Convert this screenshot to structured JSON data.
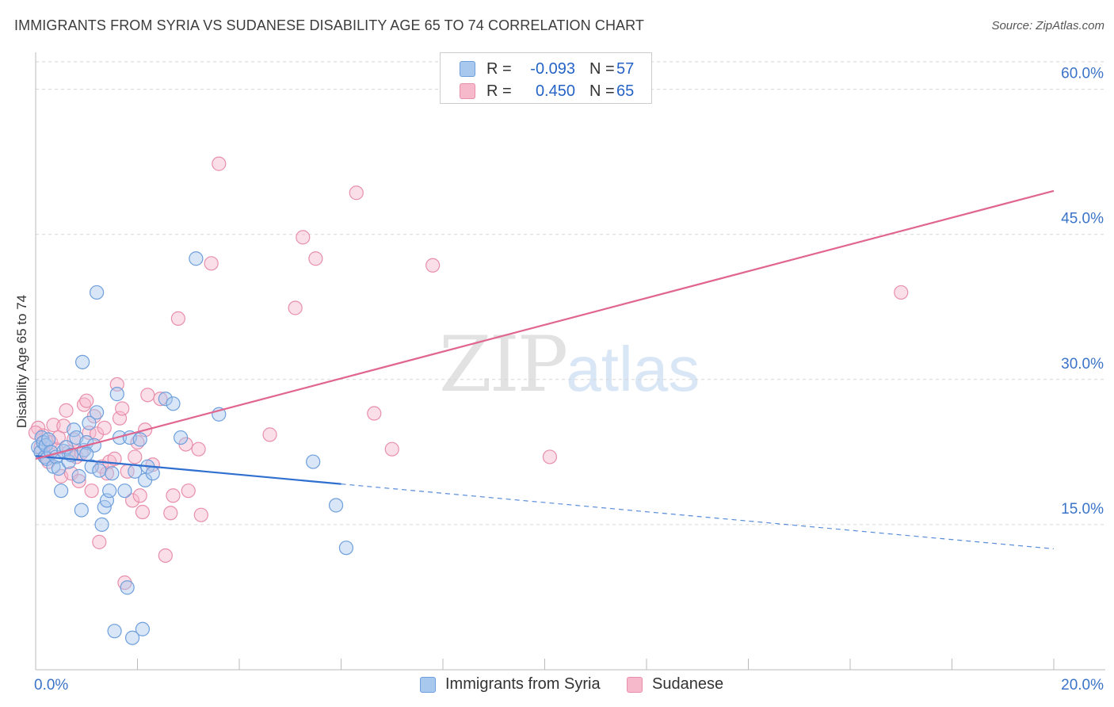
{
  "title": "IMMIGRANTS FROM SYRIA VS SUDANESE DISABILITY AGE 65 TO 74 CORRELATION CHART",
  "source": "Source: ZipAtlas.com",
  "watermark": {
    "zip": "ZIP",
    "atlas": "atlas"
  },
  "legend": {
    "rows": [
      {
        "r_label": "R =",
        "r_value": "-0.093",
        "n_label": "N =",
        "n_value": "57",
        "color": "#a9c8ee"
      },
      {
        "r_label": "R =",
        "r_value": "0.450",
        "n_label": "N =",
        "n_value": "65",
        "color": "#f6b9cc"
      }
    ]
  },
  "colors": {
    "syria_fill": "#a9c8ee",
    "syria_stroke": "#6e9fdc",
    "syria_line": "#2f6fcf",
    "sudan_fill": "#f6b9cc",
    "sudan_stroke": "#e88fab",
    "sudan_line": "#e0668f",
    "axis_text": "#3a73c8",
    "grid": "#d6d6d6"
  },
  "chart_data": {
    "type": "scatter",
    "title": "IMMIGRANTS FROM SYRIA VS SUDANESE DISABILITY AGE 65 TO 74 CORRELATION CHART",
    "xlabel": "",
    "ylabel": "Disability Age 65 to 74",
    "xlim": [
      0,
      20
    ],
    "ylim": [
      0,
      63
    ],
    "x_tick_labels": [
      "0.0%",
      "20.0%"
    ],
    "y_ticks": [
      15,
      30,
      45,
      60
    ],
    "y_tick_labels": [
      "15.0%",
      "30.0%",
      "45.0%",
      "60.0%"
    ],
    "series": [
      {
        "name": "Immigrants from Syria",
        "r": -0.093,
        "n": 57,
        "trend": {
          "x0": 0,
          "y0": 22.1,
          "x1": 6.0,
          "y1": 19.2,
          "dash_x1": 20.0,
          "dash_y1": 12.5
        },
        "points": [
          [
            0.05,
            23.0
          ],
          [
            0.1,
            22.5
          ],
          [
            0.12,
            24.0
          ],
          [
            0.15,
            23.5
          ],
          [
            0.18,
            22.0
          ],
          [
            0.2,
            23.2
          ],
          [
            0.22,
            21.8
          ],
          [
            0.25,
            23.8
          ],
          [
            0.3,
            22.5
          ],
          [
            0.35,
            21.0
          ],
          [
            0.4,
            22.0
          ],
          [
            0.45,
            20.8
          ],
          [
            0.5,
            18.5
          ],
          [
            0.55,
            22.6
          ],
          [
            0.6,
            23.0
          ],
          [
            0.65,
            21.5
          ],
          [
            0.7,
            22.2
          ],
          [
            0.75,
            24.8
          ],
          [
            0.8,
            24.0
          ],
          [
            0.85,
            20.0
          ],
          [
            0.9,
            16.5
          ],
          [
            0.92,
            31.8
          ],
          [
            0.95,
            22.7
          ],
          [
            1.0,
            23.5
          ],
          [
            1.05,
            25.5
          ],
          [
            1.1,
            21.0
          ],
          [
            1.15,
            23.2
          ],
          [
            1.2,
            26.6
          ],
          [
            1.25,
            20.6
          ],
          [
            1.3,
            15.0
          ],
          [
            1.35,
            16.8
          ],
          [
            1.4,
            17.5
          ],
          [
            1.45,
            18.5
          ],
          [
            1.5,
            20.3
          ],
          [
            1.55,
            4.0
          ],
          [
            1.6,
            28.5
          ],
          [
            1.65,
            24.0
          ],
          [
            1.75,
            18.5
          ],
          [
            1.8,
            8.5
          ],
          [
            1.85,
            24.0
          ],
          [
            1.9,
            3.3
          ],
          [
            1.95,
            20.5
          ],
          [
            2.05,
            23.8
          ],
          [
            2.1,
            4.2
          ],
          [
            2.15,
            19.6
          ],
          [
            2.2,
            21.0
          ],
          [
            2.3,
            20.3
          ],
          [
            2.55,
            28.0
          ],
          [
            2.7,
            27.5
          ],
          [
            2.85,
            24.0
          ],
          [
            1.2,
            39.0
          ],
          [
            3.15,
            42.5
          ],
          [
            3.6,
            26.4
          ],
          [
            5.45,
            21.5
          ],
          [
            5.9,
            17.0
          ],
          [
            6.1,
            12.6
          ],
          [
            1.0,
            22.3
          ]
        ]
      },
      {
        "name": "Sudanese",
        "r": 0.45,
        "n": 65,
        "trend": {
          "x0": 0,
          "y0": 21.8,
          "x1": 20.0,
          "y1": 49.5
        },
        "points": [
          [
            0.05,
            25.0
          ],
          [
            0.1,
            23.0
          ],
          [
            0.15,
            24.2
          ],
          [
            0.2,
            22.0
          ],
          [
            0.3,
            23.5
          ],
          [
            0.35,
            25.3
          ],
          [
            0.4,
            22.8
          ],
          [
            0.45,
            24.0
          ],
          [
            0.5,
            20.0
          ],
          [
            0.55,
            25.2
          ],
          [
            0.6,
            26.8
          ],
          [
            0.65,
            22.5
          ],
          [
            0.7,
            20.3
          ],
          [
            0.75,
            23.8
          ],
          [
            0.8,
            22.0
          ],
          [
            0.85,
            19.5
          ],
          [
            0.9,
            22.4
          ],
          [
            0.95,
            27.4
          ],
          [
            1.0,
            27.8
          ],
          [
            1.05,
            24.5
          ],
          [
            1.1,
            18.5
          ],
          [
            1.15,
            26.2
          ],
          [
            1.2,
            24.4
          ],
          [
            1.25,
            13.2
          ],
          [
            1.3,
            21.0
          ],
          [
            1.35,
            25.0
          ],
          [
            1.4,
            20.3
          ],
          [
            1.45,
            21.5
          ],
          [
            1.55,
            21.8
          ],
          [
            1.6,
            29.5
          ],
          [
            1.65,
            26.0
          ],
          [
            1.7,
            27.0
          ],
          [
            1.75,
            9.0
          ],
          [
            1.8,
            20.5
          ],
          [
            1.9,
            17.5
          ],
          [
            1.95,
            22.0
          ],
          [
            2.0,
            23.5
          ],
          [
            2.05,
            18.0
          ],
          [
            2.1,
            16.3
          ],
          [
            2.15,
            24.8
          ],
          [
            2.2,
            28.4
          ],
          [
            2.3,
            21.2
          ],
          [
            2.45,
            28.0
          ],
          [
            2.55,
            11.8
          ],
          [
            2.65,
            16.2
          ],
          [
            2.7,
            18.0
          ],
          [
            2.8,
            36.3
          ],
          [
            2.95,
            23.3
          ],
          [
            3.0,
            18.5
          ],
          [
            3.2,
            22.8
          ],
          [
            3.25,
            16.0
          ],
          [
            3.45,
            42.0
          ],
          [
            3.6,
            52.3
          ],
          [
            4.6,
            24.3
          ],
          [
            5.1,
            37.4
          ],
          [
            5.25,
            44.7
          ],
          [
            5.5,
            42.5
          ],
          [
            6.3,
            49.3
          ],
          [
            6.65,
            26.5
          ],
          [
            7.0,
            22.8
          ],
          [
            7.8,
            41.8
          ],
          [
            10.1,
            22.0
          ],
          [
            17.0,
            39.0
          ],
          [
            0.0,
            24.5
          ],
          [
            0.25,
            21.5
          ]
        ]
      }
    ]
  }
}
